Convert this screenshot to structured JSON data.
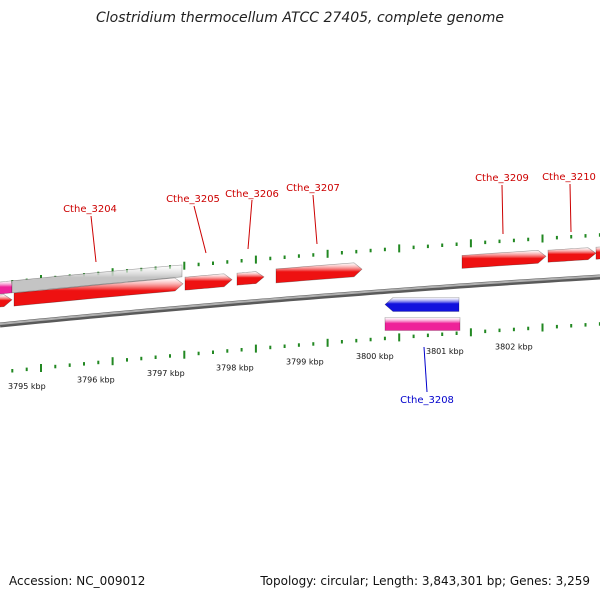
{
  "title": "Clostridium thermocellum ATCC 27405, complete genome",
  "footer": {
    "accession": "Accession: NC_009012",
    "stats": "Topology: circular; Length: 3,843,301 bp; Genes: 3,259"
  },
  "colors": {
    "forward_gene": "#ee1111",
    "reverse_gene": "#1111dd",
    "pseudo_gene": "#c4c4c4",
    "rna_gene": "#ee2299",
    "tick": "#228822",
    "backbone": "#8a8a8a",
    "forward_label": "#cc0000",
    "reverse_label": "#0000cc"
  },
  "ticks": {
    "kbp": [
      "3795 kbp",
      "3796 kbp",
      "3797 kbp",
      "3798 kbp",
      "3799 kbp",
      "3800 kbp",
      "3801 kbp",
      "3802 kbp"
    ]
  },
  "genes": [
    {
      "name": "Cthe_3204",
      "strand": "forward"
    },
    {
      "name": "Cthe_3205",
      "strand": "forward"
    },
    {
      "name": "Cthe_3206",
      "strand": "forward"
    },
    {
      "name": "Cthe_3207",
      "strand": "forward"
    },
    {
      "name": "Cthe_3208",
      "strand": "reverse"
    },
    {
      "name": "Cthe_3209",
      "strand": "forward"
    },
    {
      "name": "Cthe_3210",
      "strand": "forward"
    }
  ]
}
